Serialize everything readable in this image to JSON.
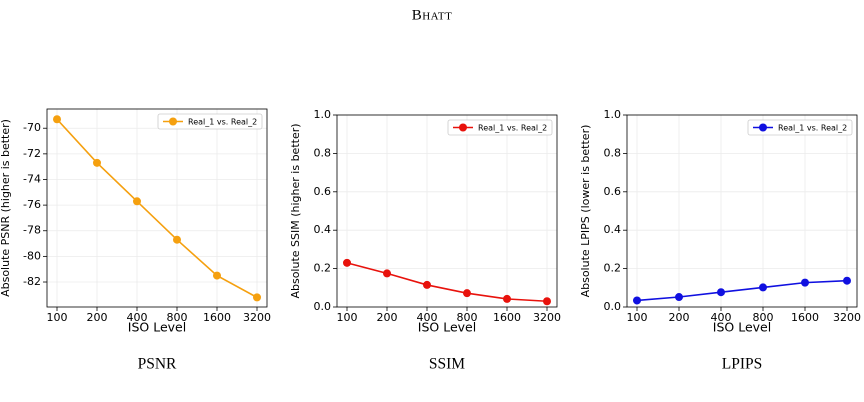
{
  "header": "Bhatt",
  "chart_data": [
    {
      "type": "line",
      "caption": "PSNR",
      "xlabel": "ISO Level",
      "ylabel": "Absolute PSNR  (higher is better)",
      "categories": [
        "100",
        "200",
        "400",
        "800",
        "1600",
        "3200"
      ],
      "series": [
        {
          "name": "Real_1 vs. Real_2",
          "color": "#f5a00f",
          "values": [
            -69.3,
            -72.7,
            -75.7,
            -78.7,
            -81.5,
            -83.2
          ]
        }
      ],
      "ylim": [
        -83.95,
        -68.5
      ],
      "yticks": [
        -82,
        -80,
        -78,
        -76,
        -74,
        -72,
        -70
      ],
      "grid": true,
      "legend": "upper right"
    },
    {
      "type": "line",
      "caption": "SSIM",
      "xlabel": "ISO Level",
      "ylabel": "Absolute SSIM  (higher is better)",
      "categories": [
        "100",
        "200",
        "400",
        "800",
        "1600",
        "3200"
      ],
      "series": [
        {
          "name": "Real_1 vs. Real_2",
          "color": "#e8120c",
          "values": [
            0.23,
            0.175,
            0.115,
            0.072,
            0.042,
            0.03
          ]
        }
      ],
      "ylim": [
        0,
        1
      ],
      "yticks": [
        {
          "value": 0,
          "label": "0.0"
        },
        0.2,
        0.4,
        0.6,
        0.8,
        {
          "value": 1,
          "label": "1.0"
        }
      ],
      "grid": true,
      "legend": "upper right"
    },
    {
      "type": "line",
      "caption": "LPIPS",
      "xlabel": "ISO Level",
      "ylabel": "Absolute LPIPS  (lower is better)",
      "categories": [
        "100",
        "200",
        "400",
        "800",
        "1600",
        "3200"
      ],
      "series": [
        {
          "name": "Real_1 vs. Real_2",
          "color": "#1010e0",
          "values": [
            0.034,
            0.052,
            0.077,
            0.102,
            0.127,
            0.137
          ]
        }
      ],
      "ylim": [
        0,
        1
      ],
      "yticks": [
        {
          "value": 0,
          "label": "0.0"
        },
        0.2,
        0.4,
        0.6,
        0.8,
        {
          "value": 1,
          "label": "1.0"
        }
      ],
      "grid": true,
      "legend": "upper right"
    }
  ]
}
